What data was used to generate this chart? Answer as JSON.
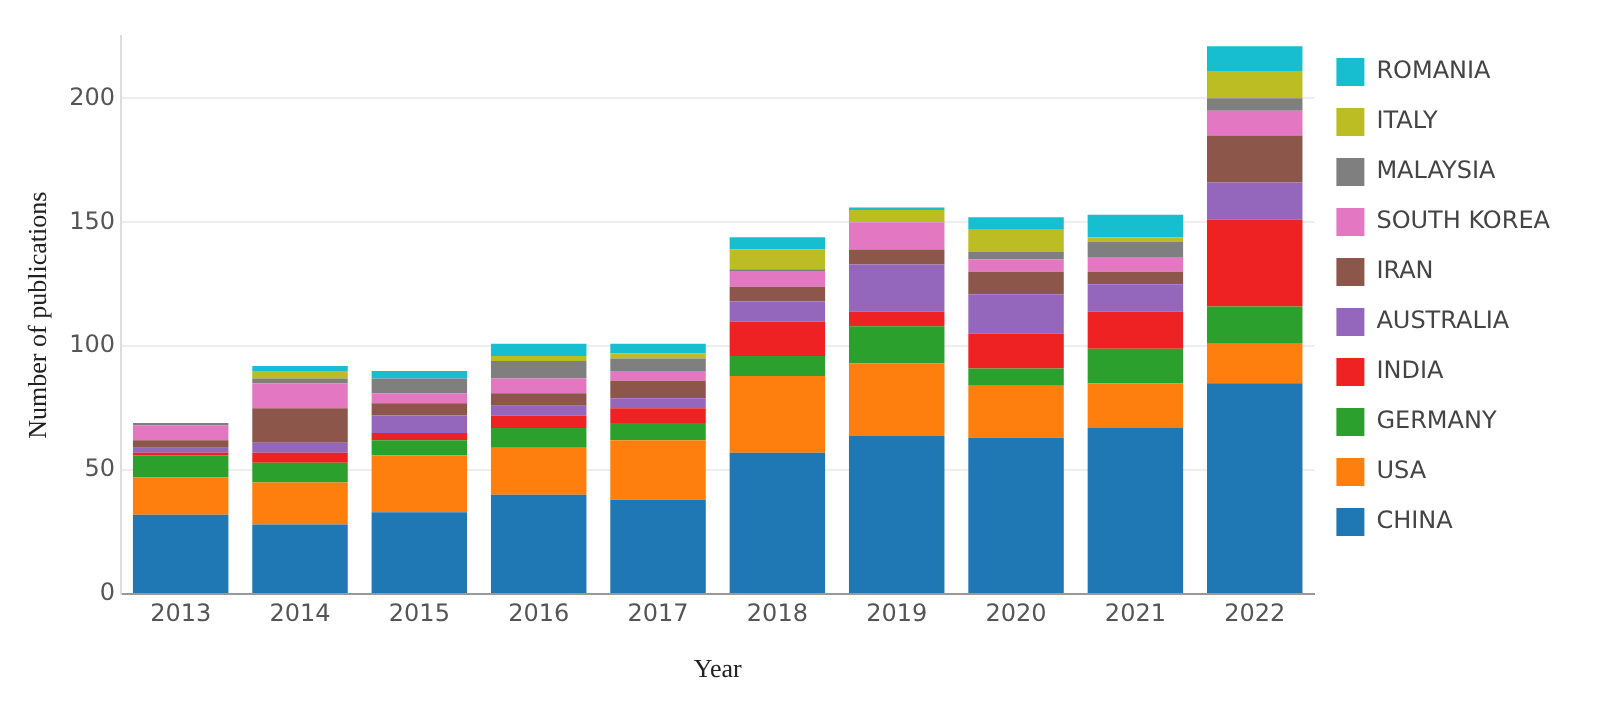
{
  "chart_data": {
    "type": "bar",
    "stacked": true,
    "xlabel": "Year",
    "ylabel": "Number of publications",
    "categories": [
      "2013",
      "2014",
      "2015",
      "2016",
      "2017",
      "2018",
      "2019",
      "2020",
      "2021",
      "2022"
    ],
    "series": [
      {
        "name": "CHINA",
        "color": "#1f77b4",
        "values": [
          32,
          28,
          33,
          40,
          38,
          57,
          64,
          63,
          67,
          85
        ]
      },
      {
        "name": "USA",
        "color": "#ff7f0e",
        "values": [
          15,
          17,
          23,
          19,
          24,
          31,
          29,
          21,
          18,
          16
        ]
      },
      {
        "name": "GERMANY",
        "color": "#2ca02c",
        "values": [
          9,
          8,
          6,
          8,
          7,
          8,
          15,
          7,
          14,
          15
        ]
      },
      {
        "name": "INDIA",
        "color": "#ee2222",
        "values": [
          1,
          4,
          3,
          5,
          6,
          14,
          6,
          14,
          15,
          35
        ]
      },
      {
        "name": "AUSTRALIA",
        "color": "#9467bd",
        "values": [
          2,
          4,
          7,
          4,
          4,
          8,
          19,
          16,
          11,
          15
        ]
      },
      {
        "name": "IRAN",
        "color": "#8c564b",
        "values": [
          3,
          14,
          5,
          5,
          7,
          6,
          6,
          9,
          5,
          19
        ]
      },
      {
        "name": "SOUTH KOREA",
        "color": "#e377c2",
        "values": [
          6,
          10,
          4,
          6,
          4,
          6,
          11,
          5,
          6,
          10
        ]
      },
      {
        "name": "MALAYSIA",
        "color": "#7f7f7f",
        "values": [
          1,
          2,
          6,
          7,
          5,
          1,
          0,
          3,
          6,
          5
        ]
      },
      {
        "name": "ITALY",
        "color": "#bcbd22",
        "values": [
          0,
          3,
          0,
          2,
          2,
          8,
          5,
          9,
          2,
          11
        ]
      },
      {
        "name": "ROMANIA",
        "color": "#17becf",
        "values": [
          0,
          2,
          3,
          5,
          4,
          5,
          1,
          5,
          9,
          10
        ]
      }
    ],
    "ylim": [
      0,
      225
    ],
    "yticks": [
      0,
      50,
      100,
      150,
      200
    ],
    "grid": "y",
    "legend": "top right"
  }
}
